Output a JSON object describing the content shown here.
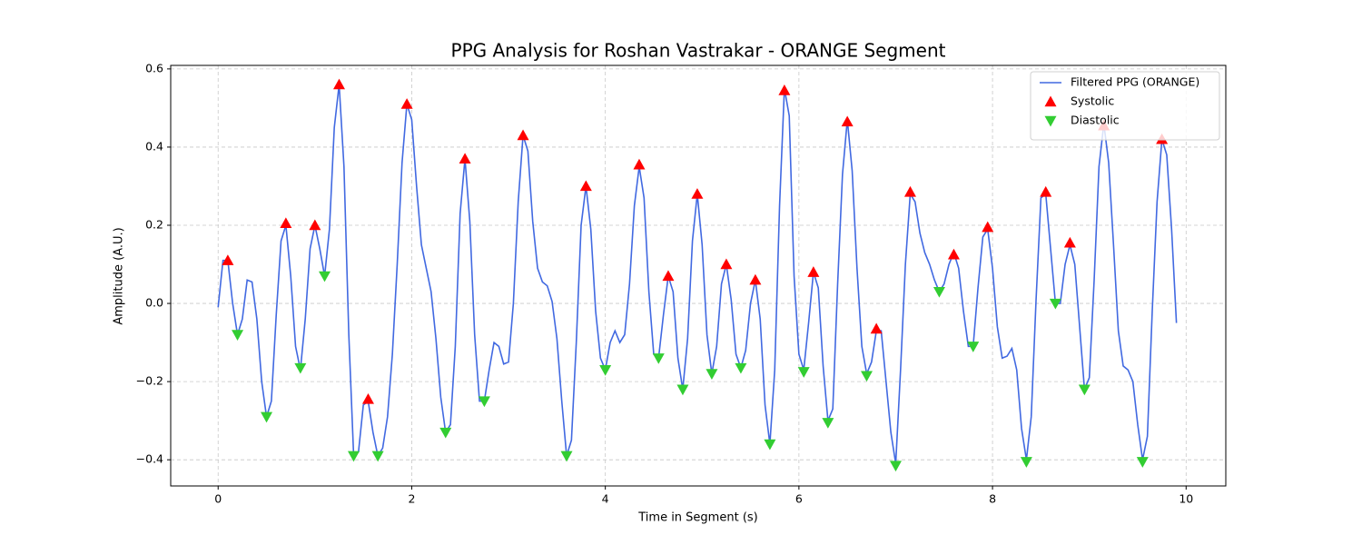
{
  "chart_data": {
    "type": "line",
    "title": "PPG Analysis for Roshan Vastrakar - ORANGE Segment",
    "x_label": "Time in Segment (s)",
    "y_label": "Amplitude (A.U.)",
    "xlim": [
      -0.49,
      10.41
    ],
    "ylim": [
      -0.467,
      0.609
    ],
    "xticks": [
      0,
      2,
      4,
      6,
      8,
      10
    ],
    "yticks": [
      {
        "value": -0.4,
        "label": "−0.4"
      },
      {
        "value": -0.2,
        "label": "−0.2"
      },
      {
        "value": 0,
        "label": "0.0"
      },
      0.2,
      0.4,
      0.6
    ],
    "grid": true,
    "legend": "upper right",
    "series": [
      {
        "name": "Filtered PPG (ORANGE)",
        "color": "#4169e1",
        "type": "line",
        "x": [
          0,
          0.05,
          0.1,
          0.15,
          0.2,
          0.25,
          0.3,
          0.35,
          0.4,
          0.45,
          0.5,
          0.55,
          0.6,
          0.65,
          0.7,
          0.75,
          0.8,
          0.85,
          0.9,
          0.95,
          1,
          1.05,
          1.1,
          1.15,
          1.2,
          1.25,
          1.3,
          1.35,
          1.4,
          1.45,
          1.5,
          1.55,
          1.6,
          1.65,
          1.7,
          1.75,
          1.8,
          1.85,
          1.9,
          1.95,
          2,
          2.05,
          2.1,
          2.15,
          2.2,
          2.25,
          2.3,
          2.35,
          2.4,
          2.45,
          2.5,
          2.55,
          2.6,
          2.65,
          2.7,
          2.75,
          2.8,
          2.85,
          2.9,
          2.95,
          3,
          3.05,
          3.1,
          3.15,
          3.2,
          3.25,
          3.3,
          3.35,
          3.4,
          3.45,
          3.5,
          3.55,
          3.6,
          3.65,
          3.7,
          3.75,
          3.8,
          3.85,
          3.9,
          3.95,
          4,
          4.05,
          4.1,
          4.15,
          4.2,
          4.25,
          4.3,
          4.35,
          4.4,
          4.45,
          4.5,
          4.55,
          4.6,
          4.65,
          4.7,
          4.75,
          4.8,
          4.85,
          4.9,
          4.95,
          5,
          5.05,
          5.1,
          5.15,
          5.2,
          5.25,
          5.3,
          5.35,
          5.4,
          5.45,
          5.5,
          5.55,
          5.6,
          5.65,
          5.7,
          5.75,
          5.8,
          5.85,
          5.9,
          5.95,
          6,
          6.05,
          6.1,
          6.15,
          6.2,
          6.25,
          6.3,
          6.35,
          6.4,
          6.45,
          6.5,
          6.55,
          6.6,
          6.65,
          6.7,
          6.75,
          6.8,
          6.85,
          6.9,
          6.95,
          7,
          7.05,
          7.1,
          7.15,
          7.2,
          7.25,
          7.3,
          7.35,
          7.4,
          7.45,
          7.5,
          7.55,
          7.6,
          7.65,
          7.7,
          7.75,
          7.8,
          7.85,
          7.9,
          7.95,
          8,
          8.05,
          8.1,
          8.15,
          8.2,
          8.25,
          8.3,
          8.35,
          8.4,
          8.45,
          8.5,
          8.55,
          8.6,
          8.65,
          8.7,
          8.75,
          8.8,
          8.85,
          8.9,
          8.95,
          9,
          9.05,
          9.1,
          9.15,
          9.2,
          9.25,
          9.3,
          9.35,
          9.4,
          9.45,
          9.5,
          9.55,
          9.6,
          9.65,
          9.7,
          9.75,
          9.8,
          9.85,
          9.9
        ],
        "values": [
          -0.01,
          0.11,
          0.11,
          0.0,
          -0.08,
          -0.04,
          0.06,
          0.055,
          -0.04,
          -0.2,
          -0.29,
          -0.25,
          -0.03,
          0.16,
          0.2,
          0.07,
          -0.11,
          -0.17,
          -0.04,
          0.14,
          0.2,
          0.14,
          0.07,
          0.19,
          0.45,
          0.56,
          0.35,
          -0.08,
          -0.39,
          -0.38,
          -0.26,
          -0.25,
          -0.33,
          -0.39,
          -0.37,
          -0.29,
          -0.13,
          0.1,
          0.36,
          0.51,
          0.47,
          0.3,
          0.15,
          0.09,
          0.03,
          -0.09,
          -0.24,
          -0.33,
          -0.31,
          -0.11,
          0.23,
          0.37,
          0.21,
          -0.08,
          -0.25,
          -0.25,
          -0.17,
          -0.1,
          -0.11,
          -0.155,
          -0.15,
          0.0,
          0.26,
          0.43,
          0.39,
          0.21,
          0.09,
          0.055,
          0.045,
          0.005,
          -0.09,
          -0.25,
          -0.39,
          -0.35,
          -0.1,
          0.2,
          0.3,
          0.19,
          -0.02,
          -0.14,
          -0.17,
          -0.1,
          -0.07,
          -0.1,
          -0.08,
          0.05,
          0.25,
          0.35,
          0.27,
          0.03,
          -0.13,
          -0.14,
          -0.03,
          0.07,
          0.03,
          -0.14,
          -0.22,
          -0.09,
          0.16,
          0.28,
          0.15,
          -0.08,
          -0.18,
          -0.11,
          0.05,
          0.1,
          0.01,
          -0.13,
          -0.165,
          -0.12,
          0.0,
          0.06,
          -0.04,
          -0.26,
          -0.36,
          -0.17,
          0.25,
          0.55,
          0.48,
          0.07,
          -0.13,
          -0.17,
          -0.05,
          0.08,
          0.04,
          -0.16,
          -0.3,
          -0.27,
          0.05,
          0.33,
          0.47,
          0.34,
          0.09,
          -0.11,
          -0.18,
          -0.15,
          -0.07,
          -0.07,
          -0.2,
          -0.33,
          -0.41,
          -0.17,
          0.1,
          0.28,
          0.26,
          0.18,
          0.13,
          0.1,
          0.06,
          0.03,
          0.05,
          0.1,
          0.13,
          0.09,
          -0.02,
          -0.11,
          -0.11,
          0.04,
          0.17,
          0.19,
          0.09,
          -0.06,
          -0.14,
          -0.135,
          -0.115,
          -0.17,
          -0.32,
          -0.4,
          -0.29,
          0.01,
          0.27,
          0.28,
          0.14,
          0.0,
          0.0,
          0.1,
          0.15,
          0.1,
          -0.06,
          -0.22,
          -0.19,
          0.06,
          0.35,
          0.46,
          0.36,
          0.15,
          -0.07,
          -0.16,
          -0.17,
          -0.2,
          -0.31,
          -0.4,
          -0.34,
          -0.02,
          0.26,
          0.42,
          0.38,
          0.19,
          -0.05
        ]
      },
      {
        "name": "Systolic",
        "color": "#ff0000",
        "type": "scatter",
        "marker": "triangle-up",
        "x": [
          0.1,
          0.7,
          1.0,
          1.25,
          1.55,
          1.95,
          2.55,
          3.15,
          3.8,
          4.35,
          4.65,
          4.95,
          5.25,
          5.55,
          5.85,
          6.15,
          6.5,
          6.8,
          7.15,
          7.6,
          7.95,
          8.55,
          8.8,
          9.15,
          9.75
        ],
        "values": [
          0.11,
          0.205,
          0.2,
          0.56,
          -0.245,
          0.51,
          0.37,
          0.43,
          0.3,
          0.355,
          0.07,
          0.28,
          0.1,
          0.06,
          0.545,
          0.08,
          0.465,
          -0.065,
          0.285,
          0.125,
          0.195,
          0.285,
          0.155,
          0.455,
          0.42
        ]
      },
      {
        "name": "Diastolic",
        "color": "#32cd32",
        "type": "scatter",
        "marker": "triangle-down",
        "x": [
          0.2,
          0.5,
          0.85,
          1.1,
          1.4,
          1.65,
          2.35,
          2.75,
          3.6,
          4.0,
          4.55,
          4.8,
          5.1,
          5.4,
          5.7,
          6.05,
          6.3,
          6.7,
          7.0,
          7.45,
          7.8,
          8.35,
          8.65,
          8.95,
          9.55
        ],
        "values": [
          -0.08,
          -0.29,
          -0.165,
          0.07,
          -0.39,
          -0.39,
          -0.33,
          -0.25,
          -0.39,
          -0.17,
          -0.14,
          -0.22,
          -0.18,
          -0.165,
          -0.36,
          -0.175,
          -0.305,
          -0.185,
          -0.415,
          0.03,
          -0.11,
          -0.405,
          0.0,
          -0.22,
          -0.405
        ]
      }
    ]
  }
}
